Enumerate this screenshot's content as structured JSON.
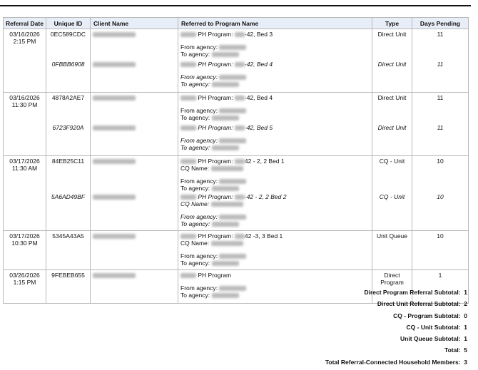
{
  "headers": [
    "Referral Date",
    "Unique ID",
    "Client Name",
    "Referred to Program Name",
    "Type",
    "Days Pending"
  ],
  "rows": [
    {
      "date": "03/16/2026 2:15 PM",
      "entries": [
        {
          "id": "0EC589CDC",
          "italic": false,
          "program": "PH Program: ",
          "program_suffix": "-42, Bed 3",
          "cq": false,
          "from": "From agency:",
          "to": "To agency:",
          "type": "Direct Unit",
          "days": "11"
        },
        {
          "id": "0FBBB6908",
          "italic": true,
          "program": "PH Program: ",
          "program_suffix": "-42, Bed 4",
          "cq": false,
          "from": "From agency:",
          "to": "To agency:",
          "type": "Direct Unit",
          "days": "11"
        }
      ]
    },
    {
      "date": "03/16/2026 11:30 PM",
      "entries": [
        {
          "id": "4878A2AE7",
          "italic": false,
          "program": "PH Program: ",
          "program_suffix": "-42, Bed 4",
          "cq": false,
          "from": "From agency:",
          "to": "To agency:",
          "type": "Direct Unit",
          "days": "11"
        },
        {
          "id": "6723F920A",
          "italic": true,
          "program": "PH Program: ",
          "program_suffix": "-42, Bed 5",
          "cq": false,
          "from": "From agency:",
          "to": "To agency:",
          "type": "Direct Unit",
          "days": "11"
        }
      ]
    },
    {
      "date": "03/17/2026 11:30 AM",
      "entries": [
        {
          "id": "84EB25C11",
          "italic": false,
          "program": "PH Program: ",
          "program_suffix": "42 - 2, 2 Bed 1",
          "cq": "CQ Name:",
          "from": "From agency:",
          "to": "To agency:",
          "type": "CQ - Unit",
          "days": "10"
        },
        {
          "id": "5A6AD49BF",
          "italic": true,
          "program": "PH Program: ",
          "program_suffix": "-42 - 2, 2  Bed 2",
          "cq": "CQ Name:",
          "from": "From agency:",
          "to": "To agency:",
          "type": "CQ - Unit",
          "days": "10"
        }
      ]
    },
    {
      "date": "03/17/2026 10:30 PM",
      "entries": [
        {
          "id": "5345A43A5",
          "italic": false,
          "program": "PH Program: ",
          "program_suffix": "42 -3, 3 Bed 1",
          "cq": "CQ Name:",
          "from": "From agency:",
          "to": "To agency:",
          "type": "Unit Queue",
          "days": "10"
        }
      ]
    },
    {
      "date": "03/26/2026 1:15 PM",
      "entries": [
        {
          "id": "9FEBEB655",
          "italic": false,
          "program": "PH Program",
          "program_suffix": "",
          "cq": false,
          "from": "From agency:",
          "to": "To agency:",
          "type": "Direct Program",
          "days": "1"
        }
      ]
    }
  ],
  "summary": [
    "Direct Program Referral Subtotal:  1",
    "Direct Unit Referral Subtotal:  2",
    "CQ - Program Subtotal:  0",
    "CQ - Unit Subtotal:  1",
    "Unit Queue Subtotal:  1",
    "Total:  5",
    "Total Referral-Connected Household Members:  3"
  ]
}
